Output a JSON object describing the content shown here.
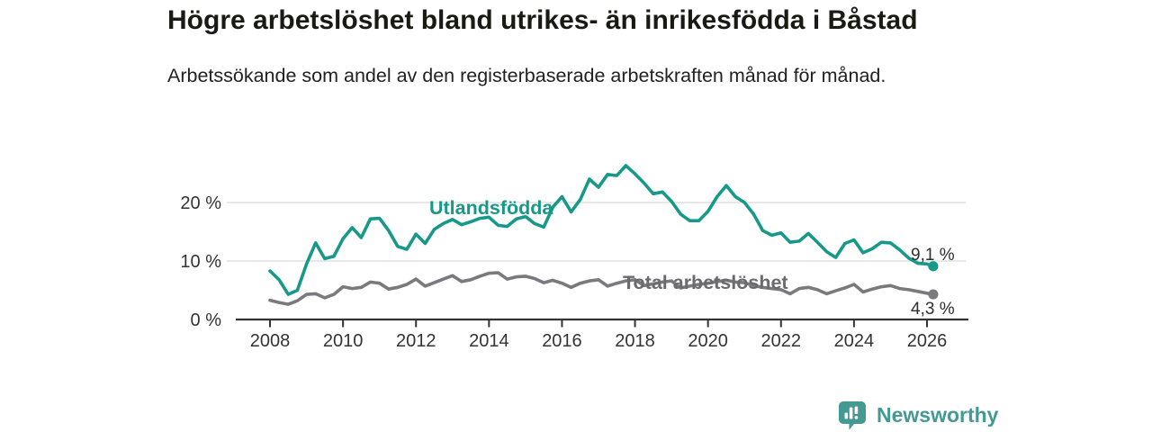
{
  "header": {
    "title": "Högre arbetslöshet bland utrikes- än inrikesfödda i Båstad",
    "subtitle": "Arbetssökande som andel av den registerbaserade arbetskraften månad för månad."
  },
  "footer": {
    "brand": "Newsworthy",
    "brand_color": "#449992"
  },
  "colors": {
    "accent_teal": "#17998a",
    "line_gray": "#7a7a7e",
    "label_gray": "#6b6b6f",
    "axis": "#333333",
    "grid": "#d9d9d9",
    "value_label": "#2e2e2e"
  },
  "chart_data": {
    "type": "line",
    "title": "Högre arbetslöshet bland utrikes- än inrikesfödda i Båstad",
    "subtitle": "Arbetssökande som andel av den registerbaserade arbetskraften månad för månad.",
    "unit": "%",
    "grid": true,
    "legend_position": "inline-labels",
    "xlim": [
      2007.1,
      2027.1
    ],
    "ylim": [
      0,
      27
    ],
    "y_ticks": [
      0,
      10,
      20
    ],
    "y_tick_labels": [
      "0 %",
      "10 %",
      "20 %"
    ],
    "x_ticks": [
      2008,
      2010,
      2012,
      2014,
      2016,
      2018,
      2020,
      2022,
      2024,
      2026
    ],
    "x_tick_labels": [
      "2008",
      "2010",
      "2012",
      "2014",
      "2016",
      "2018",
      "2020",
      "2022",
      "2024",
      "2026"
    ],
    "x": [
      2008,
      2008.25,
      2008.5,
      2008.75,
      2009,
      2009.25,
      2009.5,
      2009.75,
      2010,
      2010.25,
      2010.5,
      2010.75,
      2011,
      2011.25,
      2011.5,
      2011.75,
      2012,
      2012.25,
      2012.5,
      2012.75,
      2013,
      2013.25,
      2013.5,
      2013.75,
      2014,
      2014.25,
      2014.5,
      2014.75,
      2015,
      2015.25,
      2015.5,
      2015.75,
      2016,
      2016.25,
      2016.5,
      2016.75,
      2017,
      2017.25,
      2017.5,
      2017.75,
      2018,
      2018.25,
      2018.5,
      2018.75,
      2019,
      2019.25,
      2019.5,
      2019.75,
      2020,
      2020.25,
      2020.5,
      2020.75,
      2021,
      2021.25,
      2021.5,
      2021.75,
      2022,
      2022.25,
      2022.5,
      2022.75,
      2023,
      2023.25,
      2023.5,
      2023.75,
      2024,
      2024.25,
      2024.5,
      2024.75,
      2025,
      2025.25,
      2025.5,
      2025.75,
      2026,
      2026.17
    ],
    "series": [
      {
        "name": "Utlandsfödda",
        "label": "Utlandsfödda",
        "color": "#17998a",
        "label_color": "#17998a",
        "end_label": "9,1 %",
        "end_value": 9.1,
        "values": [
          8.3,
          6.8,
          4.3,
          5.0,
          9.5,
          13.1,
          10.4,
          10.8,
          13.8,
          15.7,
          14.0,
          17.2,
          17.3,
          15.2,
          12.5,
          12.0,
          14.6,
          13.0,
          15.4,
          16.4,
          17.1,
          16.2,
          16.7,
          17.3,
          17.5,
          16.1,
          15.9,
          17.2,
          17.6,
          16.4,
          15.8,
          19.2,
          21.0,
          18.4,
          20.5,
          24.0,
          22.6,
          24.8,
          24.6,
          26.3,
          24.9,
          23.3,
          21.5,
          21.8,
          20.2,
          18.0,
          16.9,
          16.9,
          18.5,
          21.0,
          22.9,
          21.0,
          20.0,
          18.0,
          15.2,
          14.4,
          14.8,
          13.2,
          13.4,
          14.7,
          13.2,
          11.6,
          10.6,
          13.0,
          13.6,
          11.4,
          12.1,
          13.2,
          13.1,
          11.9,
          10.5,
          9.6,
          9.5,
          9.1
        ]
      },
      {
        "name": "Total arbetslöshet",
        "label": "Total arbetslöshet",
        "color": "#7a7a7e",
        "label_color": "#6b6b6f",
        "end_label": "4,3 %",
        "end_value": 4.3,
        "values": [
          3.3,
          2.9,
          2.6,
          3.2,
          4.3,
          4.4,
          3.7,
          4.3,
          5.6,
          5.3,
          5.5,
          6.4,
          6.2,
          5.2,
          5.5,
          6.0,
          6.9,
          5.7,
          6.3,
          6.9,
          7.5,
          6.5,
          6.8,
          7.4,
          7.9,
          8.0,
          6.9,
          7.3,
          7.4,
          7.0,
          6.3,
          6.7,
          6.2,
          5.5,
          6.2,
          6.6,
          6.8,
          5.7,
          6.2,
          6.6,
          6.8,
          5.8,
          6.1,
          6.4,
          6.6,
          5.4,
          5.7,
          6.0,
          6.2,
          6.5,
          6.7,
          6.4,
          6.3,
          5.8,
          5.5,
          5.3,
          5.1,
          4.4,
          5.3,
          5.5,
          5.1,
          4.4,
          4.9,
          5.4,
          6.0,
          4.7,
          5.2,
          5.6,
          5.8,
          5.3,
          5.1,
          4.8,
          4.5,
          4.3
        ]
      }
    ]
  }
}
